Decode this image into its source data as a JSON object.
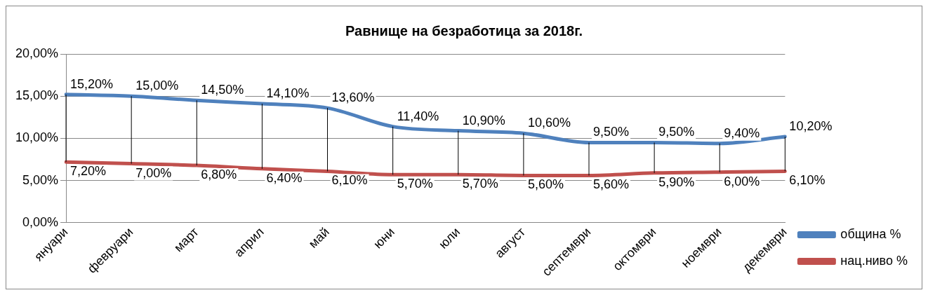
{
  "chart_data": {
    "type": "line",
    "title": "Равнище на безработица за 2018г.",
    "categories": [
      "януари",
      "февруари",
      "март",
      "април",
      "май",
      "юни",
      "юли",
      "август",
      "септември",
      "октомври",
      "ноември",
      "декември"
    ],
    "series": [
      {
        "name": "община %",
        "color": "#4f81bd",
        "values": [
          15.2,
          15.0,
          14.5,
          14.1,
          13.6,
          11.4,
          10.9,
          10.6,
          9.5,
          9.5,
          9.4,
          10.2
        ],
        "value_labels": [
          "15,20%",
          "15,00%",
          "14,50%",
          "14,10%",
          "13,60%",
          "11,40%",
          "10,90%",
          "10,60%",
          "9,50%",
          "9,50%",
          "9,40%",
          "10,20%"
        ]
      },
      {
        "name": "нац.ниво %",
        "color": "#c0504d",
        "values": [
          7.2,
          7.0,
          6.8,
          6.4,
          6.1,
          5.7,
          5.7,
          5.6,
          5.6,
          5.9,
          6.0,
          6.1
        ],
        "value_labels": [
          "7,20%",
          "7,00%",
          "6,80%",
          "6,40%",
          "6,10%",
          "5,70%",
          "5,70%",
          "5,60%",
          "5,60%",
          "5,90%",
          "6,00%",
          "6,10%"
        ]
      }
    ],
    "ylim": [
      0,
      20
    ],
    "yticks": [
      {
        "value": 0,
        "label": "0,00%"
      },
      {
        "value": 5,
        "label": "5,00%"
      },
      {
        "value": 10,
        "label": "10,00%"
      },
      {
        "value": 15,
        "label": "15,00%"
      },
      {
        "value": 20,
        "label": "20,00%"
      }
    ],
    "grid": "y",
    "legend": "right",
    "marker": "none",
    "line_style": "solid"
  }
}
